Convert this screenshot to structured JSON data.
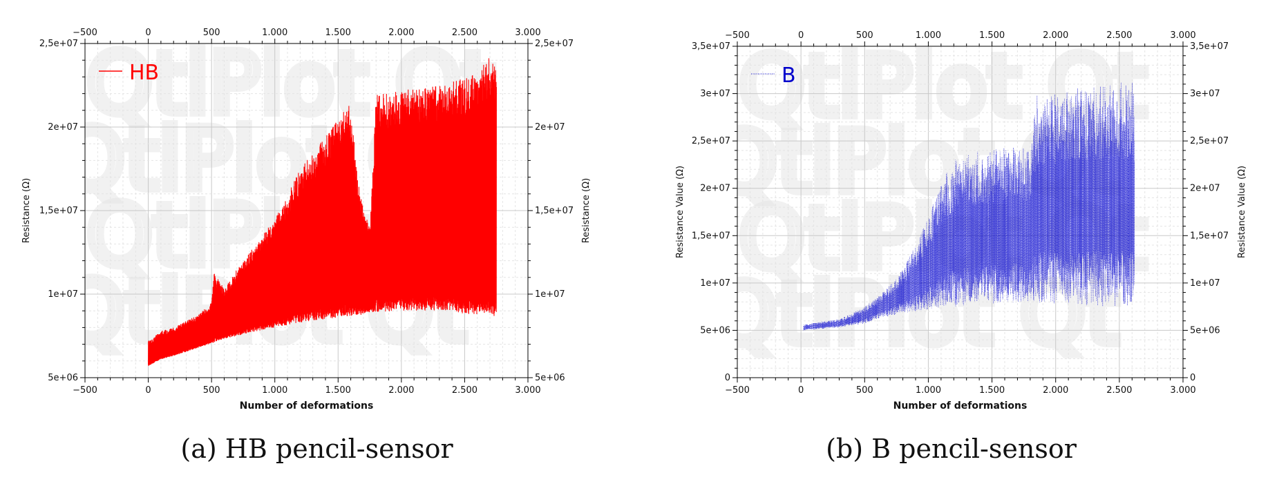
{
  "chart_data": [
    {
      "type": "line",
      "panel": "a",
      "caption": "(a) HB pencil-sensor",
      "xlabel": "Number of deformations",
      "ylabel_left": "Resistance (Ω)",
      "ylabel_right": "Resistance (Ω)",
      "xlim": [
        -500,
        3000
      ],
      "ylim": [
        5000000,
        25000000
      ],
      "x_ticks": [
        -500,
        0,
        500,
        1000,
        1500,
        2000,
        2500,
        3000
      ],
      "x_tick_labels": [
        "−500",
        "0",
        "500",
        "1.000",
        "1.500",
        "2.000",
        "2.500",
        "3.000"
      ],
      "y_ticks": [
        5000000,
        10000000,
        15000000,
        20000000,
        25000000
      ],
      "y_tick_labels": [
        "5e+06",
        "1e+07",
        "1,5e+07",
        "2e+07",
        "2,5e+07"
      ],
      "grid": true,
      "legend_position": "top-left",
      "series": [
        {
          "name": "HB",
          "color": "#ff0000",
          "style": "solid",
          "envelope": {
            "x": [
              0,
              100,
              200,
              300,
              400,
              500,
              520,
              600,
              700,
              800,
              900,
              1000,
              1100,
              1200,
              1300,
              1400,
              1500,
              1600,
              1650,
              1700,
              1750,
              1800,
              1900,
              2000,
              2100,
              2200,
              2300,
              2400,
              2500,
              2600,
              2700,
              2750
            ],
            "low": [
              5700000,
              6100000,
              6300000,
              6550000,
              6800000,
              7050000,
              7100000,
              7300000,
              7500000,
              7700000,
              7850000,
              8000000,
              8150000,
              8300000,
              8400000,
              8500000,
              8600000,
              8700000,
              8700000,
              8800000,
              8900000,
              8900000,
              8950000,
              9000000,
              9000000,
              9000000,
              9000000,
              9000000,
              8800000,
              8800000,
              8800000,
              8600000
            ],
            "high": [
              7200000,
              7800000,
              8000000,
              8400000,
              8800000,
              9500000,
              11300000,
              10300000,
              11500000,
              12500000,
              13500000,
              14500000,
              16000000,
              17500000,
              18500000,
              19500000,
              20500000,
              21500000,
              17000000,
              15000000,
              14000000,
              22000000,
              22000000,
              22200000,
              22300000,
              22400000,
              22500000,
              22800000,
              23000000,
              23300000,
              24200000,
              23600000
            ]
          }
        }
      ]
    },
    {
      "type": "line",
      "panel": "b",
      "caption": "(b) B pencil-sensor",
      "xlabel": "Number of deformations",
      "ylabel_left": "Resistance Value (Ω)",
      "ylabel_right": "Resistance Value (Ω)",
      "xlim": [
        -500,
        3000
      ],
      "ylim": [
        0,
        35000000
      ],
      "x_ticks": [
        -500,
        0,
        500,
        1000,
        1500,
        2000,
        2500,
        3000
      ],
      "x_tick_labels": [
        "−500",
        "0",
        "500",
        "1.000",
        "1.500",
        "2.000",
        "2.500",
        "3.000"
      ],
      "y_ticks": [
        0,
        5000000,
        10000000,
        15000000,
        20000000,
        25000000,
        30000000,
        35000000
      ],
      "y_tick_labels": [
        "0",
        "5e+06",
        "1e+07",
        "1,5e+07",
        "2e+07",
        "2,5e+07",
        "3e+07",
        "3,5e+07"
      ],
      "grid": true,
      "legend_position": "top-left",
      "series": [
        {
          "name": "B",
          "color": "#0000cc",
          "style": "dotted",
          "envelope": {
            "x": [
              20,
              100,
              200,
              300,
              400,
              500,
              600,
              700,
              800,
              900,
              1000,
              1100,
              1200,
              1300,
              1400,
              1500,
              1600,
              1700,
              1800,
              1850,
              1900,
              2000,
              2100,
              2200,
              2300,
              2400,
              2500,
              2600,
              2620
            ],
            "low": [
              5000000,
              5100000,
              5200000,
              5300000,
              5500000,
              5700000,
              6200000,
              6500000,
              6800000,
              7000000,
              7200000,
              7400000,
              7500000,
              7600000,
              7700000,
              7800000,
              7900000,
              8000000,
              8000000,
              8000000,
              7900000,
              7800000,
              7700000,
              7600000,
              7600000,
              7500000,
              7500000,
              7400000,
              7400000
            ],
            "high": [
              5600000,
              5800000,
              6000000,
              6200000,
              6800000,
              7500000,
              8500000,
              9800000,
              11500000,
              14000000,
              17000000,
              21000000,
              23000000,
              23500000,
              24000000,
              24200000,
              24300000,
              24400000,
              24500000,
              30000000,
              30200000,
              30300000,
              30500000,
              30700000,
              30800000,
              31000000,
              31200000,
              31300000,
              30500000
            ]
          }
        }
      ]
    }
  ],
  "watermark_text": "QtiPlot"
}
